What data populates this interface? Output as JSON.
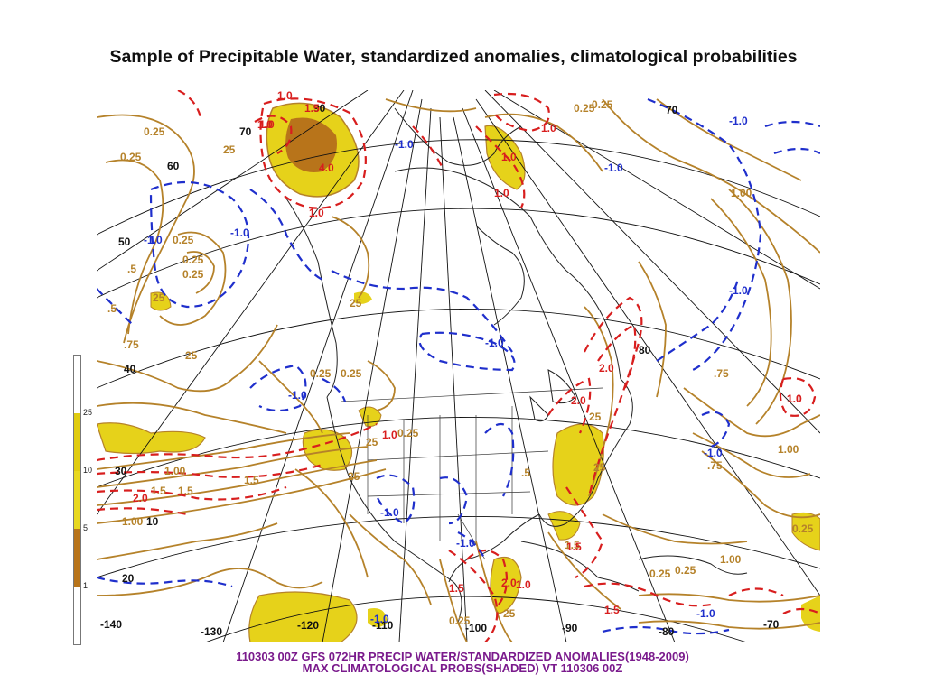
{
  "title": "Sample of Precipitable Water, standardized anomalies, climatological probabilities",
  "caption_line1": "110303 00Z GFS 072HR PRECIP WATER/STANDARDIZED ANOMALIES(1948-2009)",
  "caption_line2": "MAX CLIMATOLOGICAL PROBS(SHADED) VT 110306 00Z",
  "colorbar": {
    "ticks": [
      "25",
      "10",
      "5",
      "1"
    ],
    "colors": {
      "above_25": "#ffffff",
      "10_25": "#e0cc10",
      "5_10": "#e8d820",
      "1_5": "#b8741a",
      "below_1": "#ffffff"
    }
  },
  "colors": {
    "precip_water_contour": "#b5822a",
    "positive_anomaly": "#d81e1e",
    "negative_anomaly": "#1f2fcc",
    "shade_light": "#e6d21a",
    "shade_dark": "#b8741a",
    "graticule": "#111111"
  },
  "map_labels": {
    "lat_lon": [
      "70",
      "60",
      "50",
      "40",
      "30",
      "20",
      "10",
      "90",
      "80",
      "70",
      "-140",
      "-130",
      "-120",
      "-110",
      "-100",
      "-90",
      "-80",
      "-70"
    ],
    "brown_values": [
      "0.25",
      "0.25",
      "0.25",
      "0.25",
      "0.25",
      "0.25",
      ".5",
      ".5",
      ".75",
      ".75",
      ".75",
      "1.00",
      "1.00",
      "1.00",
      "1.00",
      "1.00",
      "25",
      "25",
      "25",
      "25",
      "25",
      "25",
      "25",
      "25",
      "25",
      "0.25",
      "0.25",
      "0.25",
      "0.25",
      "0.25",
      "0.25",
      "0.25",
      ".5",
      "1.5",
      "1.5",
      "1.5",
      "1.5",
      "0.25"
    ],
    "red_values": [
      "1.0",
      "1.0",
      "1.0",
      "1.0",
      "1.0",
      "1.0",
      "1.0",
      "1.0",
      "4.0",
      "2.0",
      "2.0",
      "2.0",
      "2.0",
      "1.5",
      "1.5",
      "1.5",
      "1.5",
      "1.0",
      "1.0",
      "1.0"
    ],
    "blue_values": [
      "-1.0",
      "-1.0",
      "-1.0",
      "-1.0",
      "-1.0",
      "-1.0",
      "-1.0",
      "-1.0",
      "-1.0",
      "-1.0",
      "-1.0",
      "-1.0",
      "-1.0"
    ]
  }
}
